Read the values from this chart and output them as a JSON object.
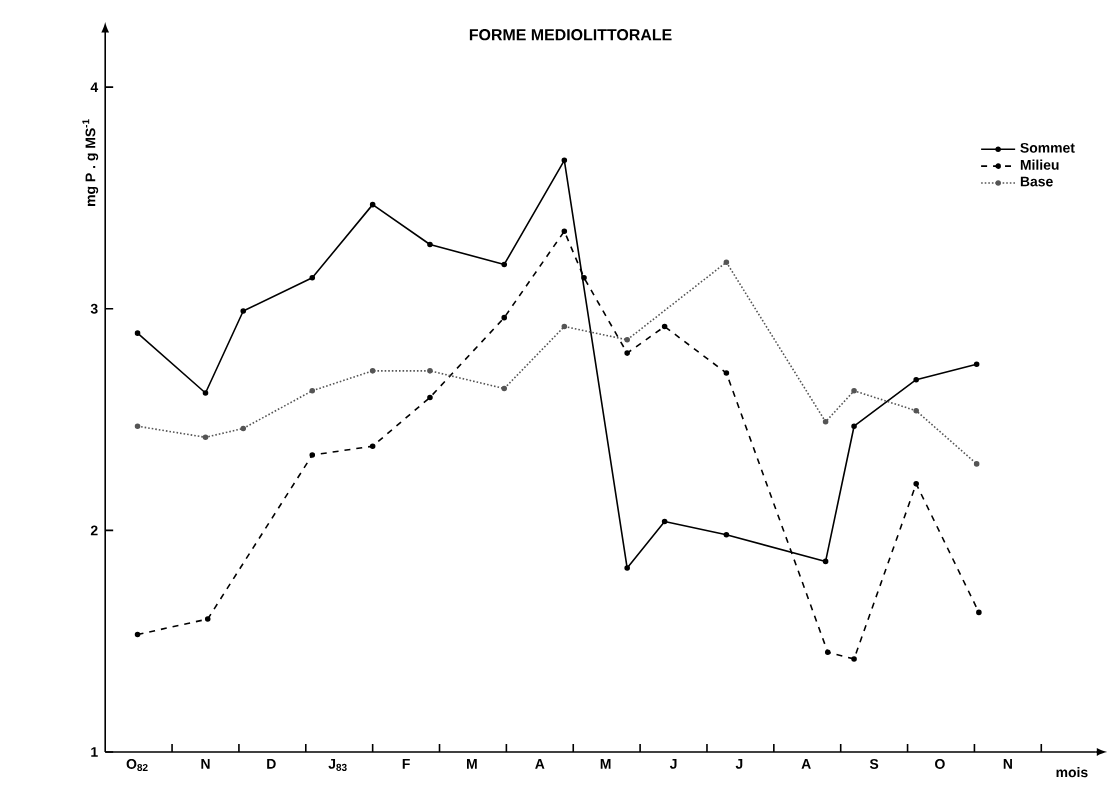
{
  "chart_data": {
    "type": "line",
    "title": "FORME MEDIOLITTORALE",
    "xlabel": "mois",
    "ylabel": "mg P . g MS$^{-1}$",
    "xlim": [
      "1982-10-01",
      "1983-12-26"
    ],
    "ylim": [
      1,
      4.24
    ],
    "xticks": [
      {
        "value": "1982-10-16",
        "label": "O$_{82}$"
      },
      {
        "value": "1982-11-16",
        "label": "N"
      },
      {
        "value": "1982-12-16",
        "label": "D"
      },
      {
        "value": "1983-01-16",
        "label": "J$_{83}$"
      },
      {
        "value": "1983-02-15",
        "label": "F"
      },
      {
        "value": "1983-03-16",
        "label": "M"
      },
      {
        "value": "1983-04-16",
        "label": "A"
      },
      {
        "value": "1983-05-16",
        "label": "M"
      },
      {
        "value": "1983-06-16",
        "label": "J"
      },
      {
        "value": "1983-07-16",
        "label": "J"
      },
      {
        "value": "1983-08-16",
        "label": "A"
      },
      {
        "value": "1983-09-16",
        "label": "S"
      },
      {
        "value": "1983-10-16",
        "label": "O"
      },
      {
        "value": "1983-11-16",
        "label": "N"
      },
      {
        "value": "1982-11-01",
        "label": null
      },
      {
        "value": "1982-12-01",
        "label": null
      },
      {
        "value": "1983-01-01",
        "label": null
      },
      {
        "value": "1983-02-01",
        "label": null
      },
      {
        "value": "1983-03-01",
        "label": null
      },
      {
        "value": "1983-04-01",
        "label": null
      },
      {
        "value": "1983-05-01",
        "label": null
      },
      {
        "value": "1983-06-01",
        "label": null
      },
      {
        "value": "1983-07-01",
        "label": null
      },
      {
        "value": "1983-08-01",
        "label": null
      },
      {
        "value": "1983-09-01",
        "label": null
      },
      {
        "value": "1983-10-01",
        "label": null
      },
      {
        "value": "1983-11-01",
        "label": null
      },
      {
        "value": "1983-12-01",
        "label": null
      }
    ],
    "yticks": [
      1,
      2,
      3,
      4
    ],
    "legend": "top right",
    "marker": "circle",
    "series": [
      {
        "name": "Sommet",
        "color": "#000000",
        "line_style": "solid",
        "x": [
          "1982-10-16",
          "1982-11-16",
          "1982-12-03",
          "1983-01-04",
          "1983-02-01",
          "1983-02-25",
          "1983-03-31",
          "1983-04-27",
          "1983-05-26",
          "1983-06-12",
          "1983-07-10",
          "1983-08-25",
          "1983-09-07",
          "1983-10-05",
          "1983-11-02"
        ],
        "values": [
          2.89,
          2.62,
          2.99,
          3.14,
          3.47,
          3.29,
          3.2,
          3.67,
          1.83,
          2.04,
          1.98,
          1.86,
          2.47,
          2.68,
          2.75
        ]
      },
      {
        "name": "Milieu",
        "color": "#000000",
        "line_style": "dashed",
        "x": [
          "1982-10-16",
          "1982-11-17",
          "1983-01-04",
          "1983-02-01",
          "1983-02-25",
          "1983-03-31",
          "1983-04-27",
          "1983-05-06",
          "1983-05-26",
          "1983-06-12",
          "1983-07-10",
          "1983-08-26",
          "1983-09-07",
          "1983-10-05",
          "1983-11-03"
        ],
        "values": [
          1.53,
          1.6,
          2.34,
          2.38,
          2.6,
          2.96,
          3.35,
          3.14,
          2.8,
          2.92,
          2.71,
          1.45,
          1.42,
          2.21,
          1.63
        ]
      },
      {
        "name": "Base",
        "color": "#555555",
        "line_style": "dotted",
        "x": [
          "1982-10-16",
          "1982-11-16",
          "1982-12-03",
          "1983-01-04",
          "1983-02-01",
          "1983-02-25",
          "1983-03-31",
          "1983-04-27",
          "1983-05-26",
          "1983-07-10",
          "1983-08-25",
          "1983-09-07",
          "1983-10-05",
          "1983-11-02"
        ],
        "values": [
          2.47,
          2.42,
          2.46,
          2.63,
          2.72,
          2.72,
          2.64,
          2.92,
          2.86,
          3.21,
          2.49,
          2.63,
          2.54,
          2.3
        ]
      }
    ]
  }
}
